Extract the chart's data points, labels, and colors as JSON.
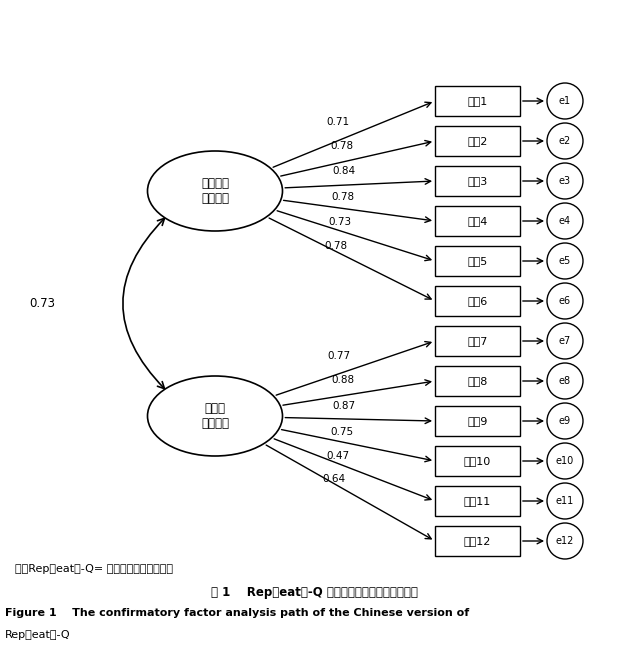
{
  "factor1_label": "非强迫型\n放牧饮食",
  "factor2_label": "强迫型\n放牧饮食",
  "factor1_items": [
    "条目1",
    "条目2",
    "条目3",
    "条目4",
    "条目5",
    "条目6"
  ],
  "factor2_items": [
    "条目7",
    "条目8",
    "条目9",
    "条目10",
    "条目11",
    "条目12"
  ],
  "factor1_errors": [
    "e1",
    "e2",
    "e3",
    "e4",
    "e5",
    "e6"
  ],
  "factor2_errors": [
    "e7",
    "e8",
    "e9",
    "e10",
    "e11",
    "e12"
  ],
  "factor1_loadings": [
    "0.71",
    "0.78",
    "0.84",
    "0.78",
    "0.73",
    "0.78"
  ],
  "factor2_loadings": [
    "0.77",
    "0.88",
    "0.87",
    "0.75",
    "0.47",
    "0.64"
  ],
  "correlation": "0.73",
  "note_line1": "注：Rep（eat）-Q= 放牧饮食行为测评量表",
  "note_line2": "图 1    Rep（eat）-Q 中文版的验证性因子分析路径",
  "note_line3": "Figure 1    The confirmatory factor analysis path of the Chinese version of",
  "note_line4": "Rep（eat）-Q",
  "bg_color": "#ffffff",
  "box_color": "#000000",
  "line_color": "#000000",
  "text_color": "#000000"
}
